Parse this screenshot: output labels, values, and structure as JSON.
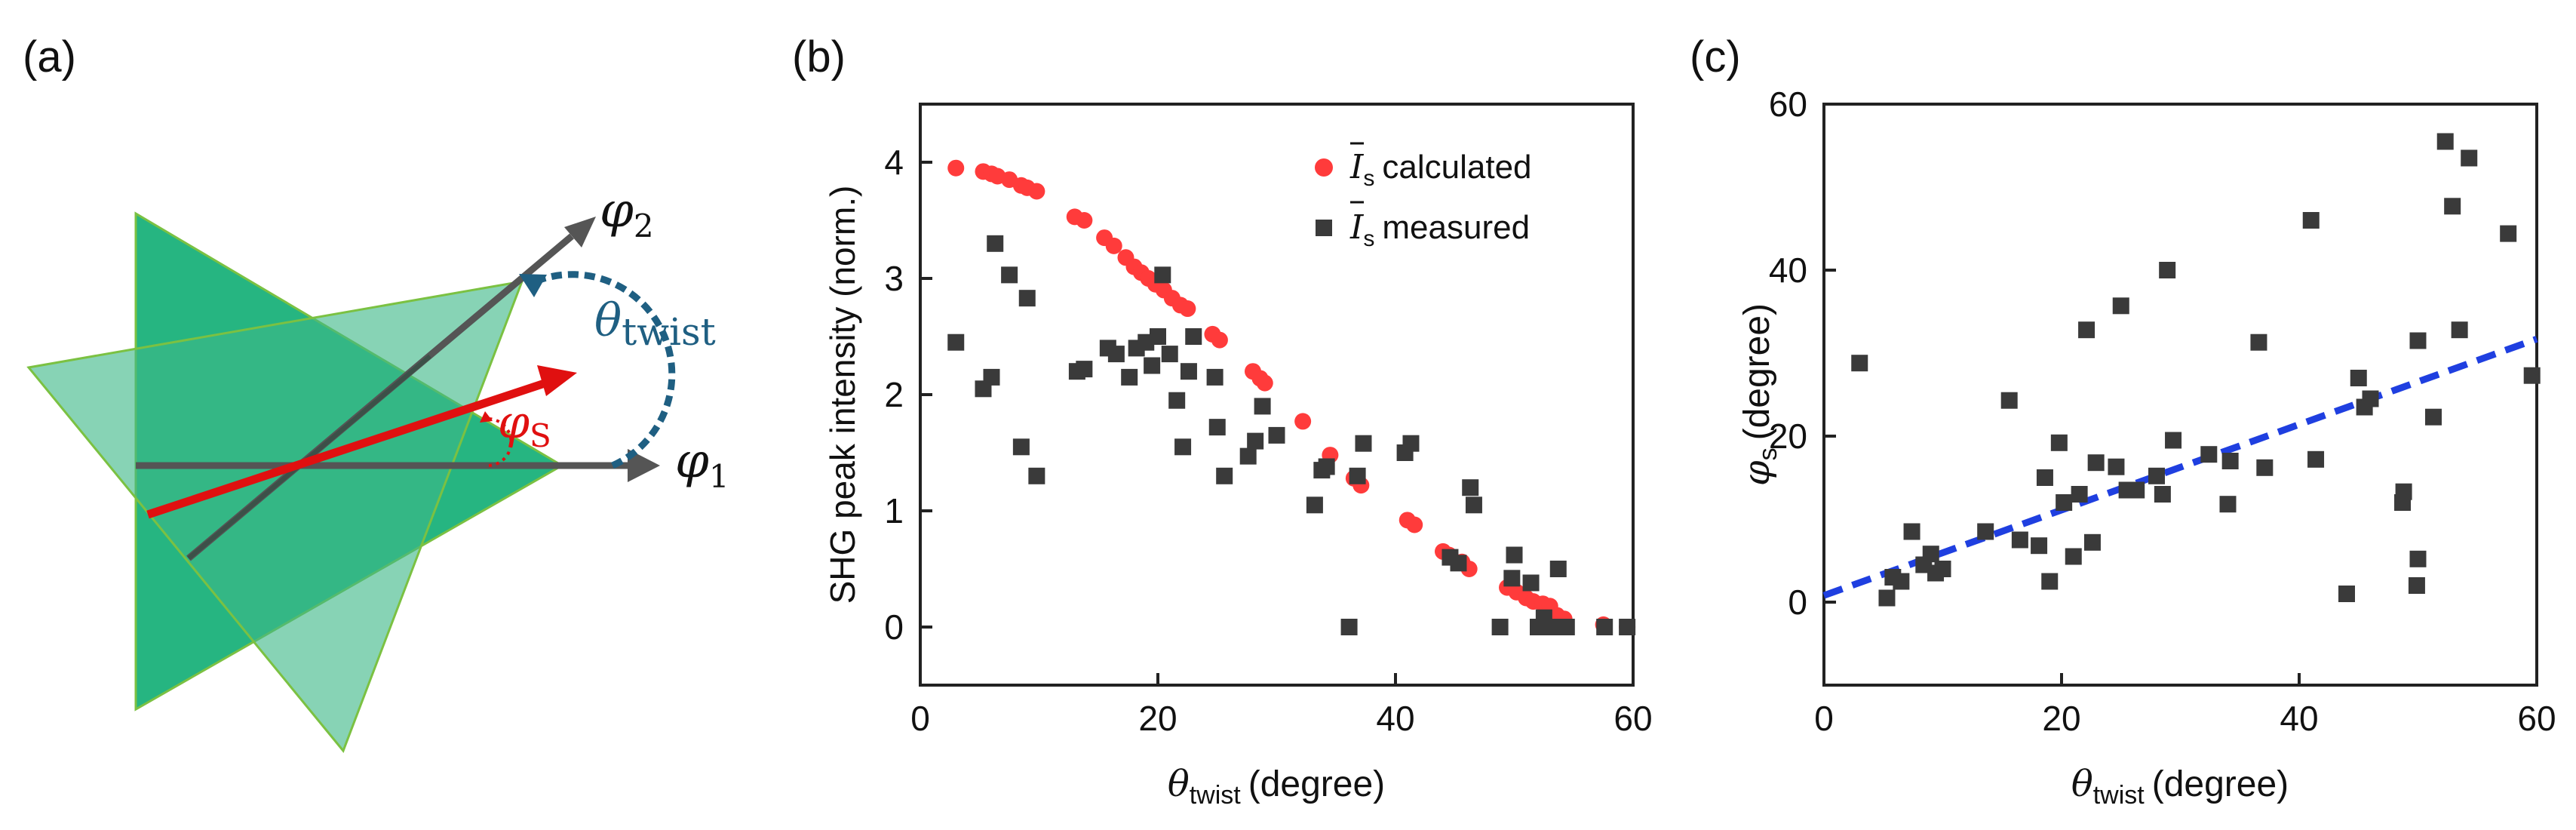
{
  "panels": {
    "a": {
      "label": "(a)",
      "phi1_symbol": "φ",
      "phi1_sub": "1",
      "phi2_symbol": "φ",
      "phi2_sub": "2",
      "theta_symbol": "θ",
      "theta_sub": "twist",
      "phis_symbol": "φ",
      "phis_sub": "S",
      "colors": {
        "triangle_dark": "#00A86B",
        "triangle_light": "#7CCFA8",
        "axis_arrow": "#555555",
        "red_arrow": "#E01010",
        "theta_arc": "#1F5F82"
      }
    },
    "b": {
      "label": "(b)",
      "ylabel": "SHG peak intensity (norm.)",
      "xlabel_symbol": "θ",
      "xlabel_sub": "twist",
      "xlabel_unit": "(degree)",
      "legend": [
        {
          "symbol": "I",
          "sub": "s",
          "text": "calculated",
          "marker": "circle",
          "color": "#FF3B3B"
        },
        {
          "symbol": "I",
          "sub": "s",
          "text": "measured",
          "marker": "square",
          "color": "#3A3A3A"
        }
      ]
    },
    "c": {
      "label": "(c)",
      "ylabel_symbol": "φ",
      "ylabel_sub": "s",
      "ylabel_unit": "(degree)",
      "xlabel_symbol": "θ",
      "xlabel_sub": "twist",
      "xlabel_unit": "(degree)",
      "fit_color": "#1F3FE0"
    }
  },
  "chart_data": [
    {
      "id": "b",
      "type": "scatter",
      "title": "",
      "xlabel": "θ twist (degree)",
      "ylabel": "SHG peak intensity (norm.)",
      "xlim": [
        0,
        60
      ],
      "ylim": [
        -0.5,
        4.5
      ],
      "xticks": [
        0,
        20,
        40,
        60
      ],
      "yticks": [
        0,
        1,
        2,
        3,
        4
      ],
      "legend_position": "top-right",
      "series": [
        {
          "name": "Is calculated",
          "marker": "circle",
          "color": "#FF3B3B",
          "points": [
            [
              3,
              3.95
            ],
            [
              5.3,
              3.92
            ],
            [
              6,
              3.9
            ],
            [
              6.5,
              3.88
            ],
            [
              7.5,
              3.85
            ],
            [
              8.5,
              3.8
            ],
            [
              9,
              3.78
            ],
            [
              9.8,
              3.75
            ],
            [
              13,
              3.53
            ],
            [
              13.8,
              3.5
            ],
            [
              15.5,
              3.35
            ],
            [
              16.3,
              3.28
            ],
            [
              17.3,
              3.18
            ],
            [
              18,
              3.1
            ],
            [
              18.6,
              3.05
            ],
            [
              19.2,
              3.0
            ],
            [
              19.8,
              2.95
            ],
            [
              20.5,
              2.9
            ],
            [
              21.2,
              2.83
            ],
            [
              21.9,
              2.77
            ],
            [
              22.5,
              2.74
            ],
            [
              24.6,
              2.52
            ],
            [
              25.2,
              2.47
            ],
            [
              28,
              2.2
            ],
            [
              28.6,
              2.14
            ],
            [
              29,
              2.1
            ],
            [
              32.2,
              1.77
            ],
            [
              34.5,
              1.48
            ],
            [
              36.5,
              1.28
            ],
            [
              37.1,
              1.22
            ],
            [
              41,
              0.92
            ],
            [
              41.6,
              0.88
            ],
            [
              44,
              0.65
            ],
            [
              44.5,
              0.62
            ],
            [
              45.6,
              0.56
            ],
            [
              46.2,
              0.5
            ],
            [
              49.4,
              0.34
            ],
            [
              50.2,
              0.3
            ],
            [
              51,
              0.25
            ],
            [
              51.6,
              0.22
            ],
            [
              52.4,
              0.2
            ],
            [
              53,
              0.18
            ],
            [
              53.6,
              0.1
            ],
            [
              54.2,
              0.07
            ],
            [
              57.5,
              0.02
            ],
            [
              59.5,
              0.0
            ]
          ]
        },
        {
          "name": "Is measured",
          "marker": "square",
          "color": "#3A3A3A",
          "points": [
            [
              3,
              2.45
            ],
            [
              5.3,
              2.05
            ],
            [
              6,
              2.15
            ],
            [
              6.3,
              3.3
            ],
            [
              7.5,
              3.03
            ],
            [
              8.5,
              1.55
            ],
            [
              9,
              2.83
            ],
            [
              9.8,
              1.3
            ],
            [
              13.2,
              2.2
            ],
            [
              13.8,
              2.22
            ],
            [
              15.8,
              2.4
            ],
            [
              16.5,
              2.35
            ],
            [
              17.6,
              2.15
            ],
            [
              18.2,
              2.4
            ],
            [
              19,
              2.45
            ],
            [
              19.5,
              2.25
            ],
            [
              20,
              2.5
            ],
            [
              20.4,
              3.03
            ],
            [
              21,
              2.35
            ],
            [
              21.6,
              1.95
            ],
            [
              22.1,
              1.55
            ],
            [
              22.6,
              2.2
            ],
            [
              23,
              2.5
            ],
            [
              24.8,
              2.15
            ],
            [
              25,
              1.72
            ],
            [
              25.6,
              1.3
            ],
            [
              27.6,
              1.47
            ],
            [
              28.2,
              1.6
            ],
            [
              28.8,
              1.9
            ],
            [
              30,
              1.65
            ],
            [
              33.2,
              1.05
            ],
            [
              33.8,
              1.35
            ],
            [
              34.2,
              1.38
            ],
            [
              36.1,
              0.0
            ],
            [
              36.8,
              1.3
            ],
            [
              37.3,
              1.58
            ],
            [
              40.8,
              1.5
            ],
            [
              41.3,
              1.58
            ],
            [
              44.6,
              0.6
            ],
            [
              45.3,
              0.55
            ],
            [
              46.3,
              1.2
            ],
            [
              46.6,
              1.05
            ],
            [
              48.8,
              0.0
            ],
            [
              49.8,
              0.42
            ],
            [
              50.0,
              0.62
            ],
            [
              51.4,
              0.38
            ],
            [
              52,
              0.0
            ],
            [
              52.5,
              0.08
            ],
            [
              53.1,
              0.0
            ],
            [
              53.7,
              0.5
            ],
            [
              54.4,
              0.0
            ],
            [
              57.6,
              0.0
            ],
            [
              59.5,
              0.0
            ]
          ]
        }
      ]
    },
    {
      "id": "c",
      "type": "scatter",
      "title": "",
      "xlabel": "θ twist (degree)",
      "ylabel": "φs (degree)",
      "xlim": [
        0,
        60
      ],
      "ylim": [
        -10,
        60
      ],
      "xticks": [
        0,
        20,
        40,
        60
      ],
      "yticks": [
        0,
        20,
        40,
        60
      ],
      "series": [
        {
          "name": "measured",
          "marker": "square",
          "color": "#3A3A3A",
          "points": [
            [
              3,
              28.8
            ],
            [
              5.3,
              0.5
            ],
            [
              5.8,
              3
            ],
            [
              6.5,
              2.5
            ],
            [
              7.4,
              8.5
            ],
            [
              8.4,
              4.5
            ],
            [
              9,
              5.8
            ],
            [
              9.4,
              3.5
            ],
            [
              10,
              4
            ],
            [
              13.6,
              8.5
            ],
            [
              15.6,
              24.3
            ],
            [
              16.5,
              7.5
            ],
            [
              18.1,
              6.8
            ],
            [
              18.6,
              15
            ],
            [
              19,
              2.5
            ],
            [
              19.8,
              19.2
            ],
            [
              20.2,
              12
            ],
            [
              21,
              5.5
            ],
            [
              21.5,
              13
            ],
            [
              22.1,
              32.8
            ],
            [
              22.6,
              7.2
            ],
            [
              22.9,
              16.8
            ],
            [
              24.6,
              16.3
            ],
            [
              25,
              35.7
            ],
            [
              25.5,
              13.5
            ],
            [
              26.3,
              13.5
            ],
            [
              28,
              15.2
            ],
            [
              28.5,
              13
            ],
            [
              28.9,
              40
            ],
            [
              29.4,
              19.5
            ],
            [
              32.4,
              17.8
            ],
            [
              34,
              11.8
            ],
            [
              34.2,
              17
            ],
            [
              36.6,
              31.3
            ],
            [
              37.1,
              16.2
            ],
            [
              41,
              46
            ],
            [
              41.4,
              17.2
            ],
            [
              44,
              1
            ],
            [
              45,
              27
            ],
            [
              45.5,
              23.5
            ],
            [
              46,
              24.5
            ],
            [
              48.7,
              12
            ],
            [
              48.8,
              13.3
            ],
            [
              49.9,
              2
            ],
            [
              50,
              5.2
            ],
            [
              50,
              31.5
            ],
            [
              51.3,
              22.3
            ],
            [
              52.3,
              55.5
            ],
            [
              52.9,
              47.7
            ],
            [
              53.5,
              32.8
            ],
            [
              54.3,
              53.5
            ],
            [
              57.6,
              44.4
            ],
            [
              59.6,
              27.3
            ]
          ]
        },
        {
          "name": "linear fit",
          "line": "dashed",
          "color": "#1F3FE0",
          "points": [
            [
              0,
              0.8
            ],
            [
              60,
              31.7
            ]
          ]
        }
      ]
    }
  ]
}
